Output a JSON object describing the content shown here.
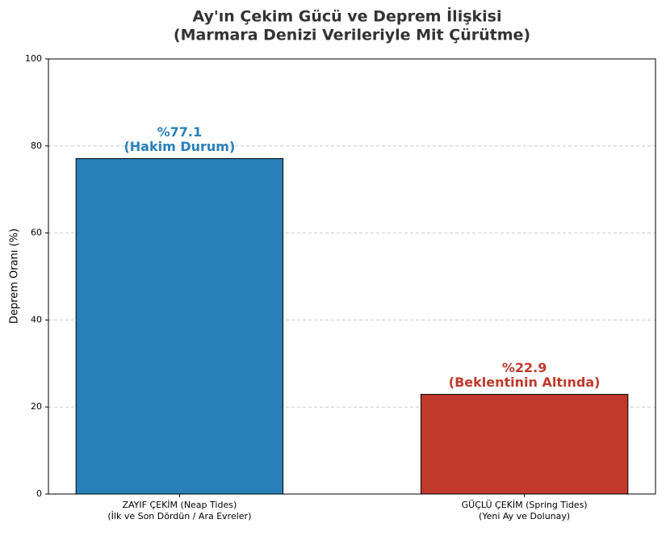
{
  "chart_data": {
    "type": "bar",
    "title": [
      "Ay'ın Çekim Gücü ve Deprem İlişkisi",
      "(Marmara Denizi Verileriyle Mit Çürütme)"
    ],
    "y_label": "Deprem Oranı (%)",
    "categories": [
      [
        "ZAYIF ÇEKİM (Neap Tides)",
        "(İlk ve Son Dördün / Ara Evreler)"
      ],
      [
        "GÜÇLÜ ÇEKİM (Spring Tides)",
        "(Yeni Ay ve Dolunay)"
      ]
    ],
    "values": [
      77.1,
      22.9
    ],
    "value_labels": [
      "%77.1",
      "%22.9"
    ],
    "label_notes": [
      "(Hakim Durum)",
      "(Beklentinin Altında)"
    ],
    "colors": [
      "#2980b9",
      "#c0392b"
    ],
    "ylim": [
      0,
      100
    ],
    "yticks": [
      0,
      20,
      40,
      60,
      80,
      100
    ],
    "grid": true
  }
}
